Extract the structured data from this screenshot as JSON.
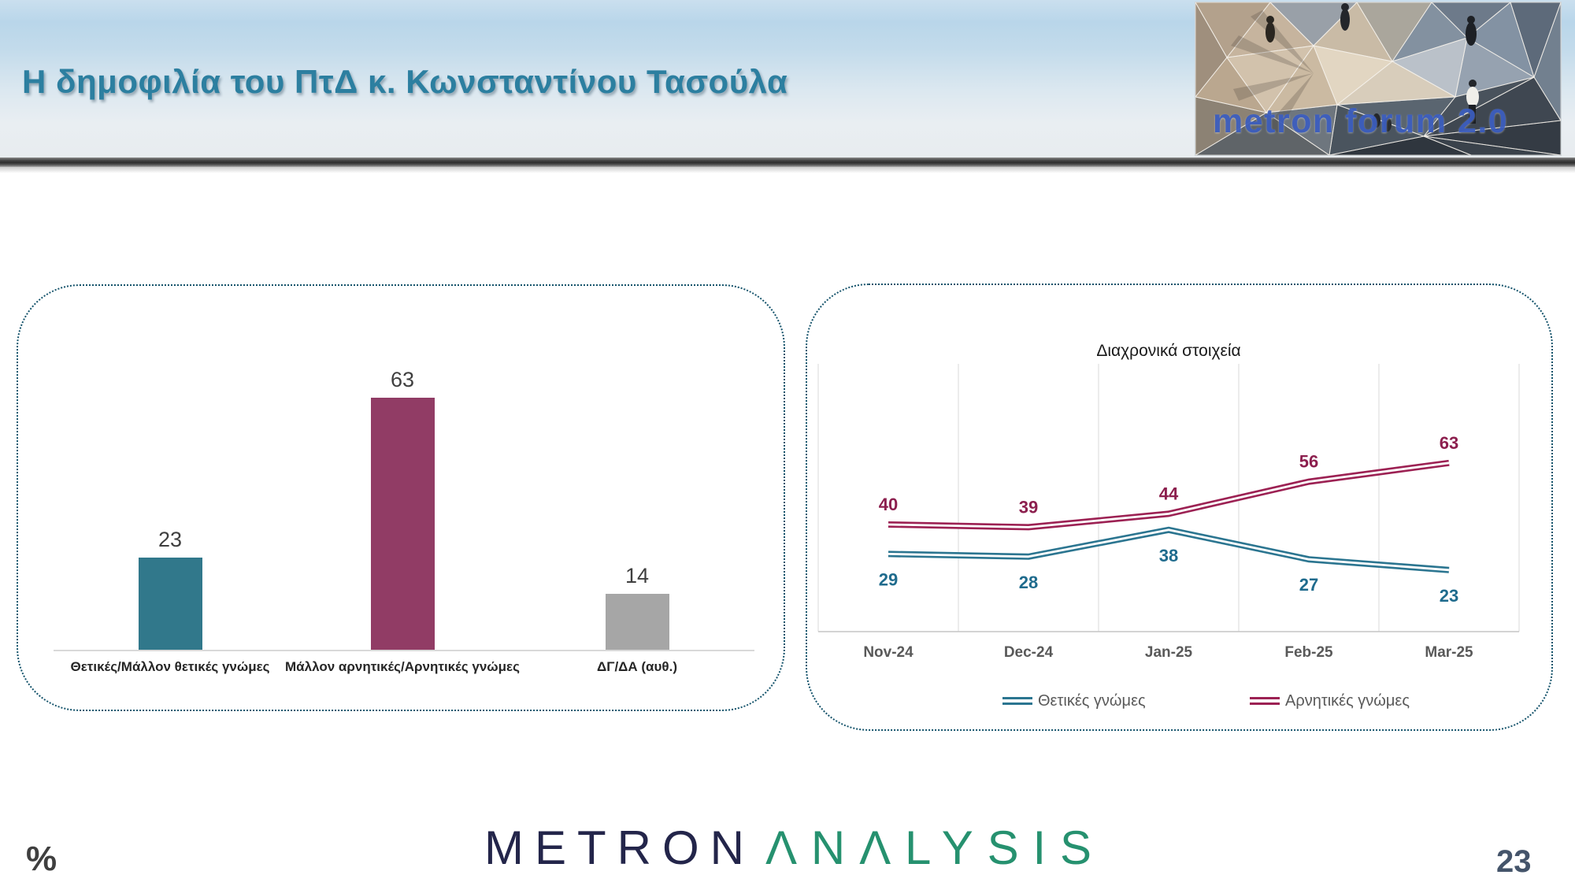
{
  "header": {
    "title": "Η δημοφιλία του ΠτΔ κ. Κωνσταντίνου Τασούλα",
    "title_color": "#2c7fa0",
    "logo_text": "metron forum 2.0"
  },
  "chart_data": [
    {
      "type": "bar",
      "title": "",
      "categories": [
        "Θετικές/Μάλλον θετικές γνώμες",
        "Μάλλον αρνητικές/Αρνητικές γνώμες",
        "ΔΓ/ΔΑ (αυθ.)"
      ],
      "values": [
        23,
        63,
        14
      ],
      "bar_colors": [
        "#31788b",
        "#913c65",
        "#a6a6a6"
      ],
      "ylim": [
        0,
        70
      ],
      "data_labels": true,
      "grid": false
    },
    {
      "type": "line",
      "title": "Διαχρονικά στοιχεία",
      "categories": [
        "Nov-24",
        "Dec-24",
        "Jan-25",
        "Feb-25",
        "Mar-25"
      ],
      "series": [
        {
          "name": "Θετικές γνώμες",
          "values": [
            29,
            28,
            38,
            27,
            23
          ],
          "color": "#2b7590",
          "label_color": "#1f6b8d",
          "label_side": "below"
        },
        {
          "name": "Αρνητικές γνώμες",
          "values": [
            40,
            39,
            44,
            56,
            63
          ],
          "color": "#9c2153",
          "label_color": "#8c1f4e",
          "label_side": "above"
        }
      ],
      "ylim": [
        0,
        100
      ],
      "grid": "vertical",
      "legend_position": "bottom"
    }
  ],
  "footer": {
    "percent_label": "%",
    "page_number": "23",
    "logo_part1": "METRON",
    "logo_part2": "ΛNΛLYSIS",
    "logo_color1": "#23254a",
    "logo_color2": "#26916f"
  }
}
